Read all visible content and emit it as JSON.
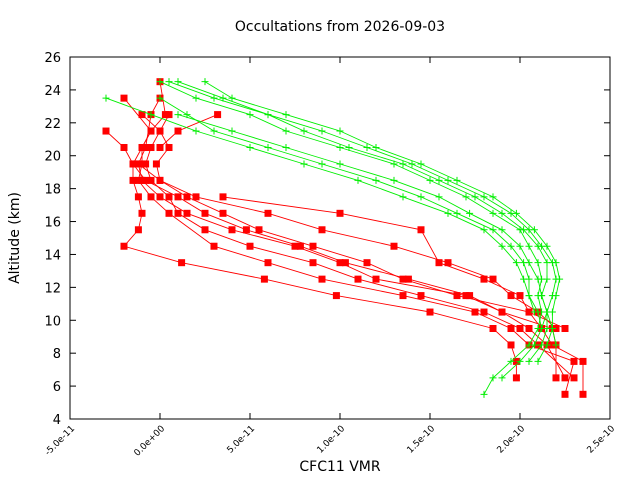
{
  "chart_data": {
    "type": "line",
    "title": "Occultations from 2026-09-03",
    "xlabel": "CFC11 VMR",
    "ylabel": "Altitude (km)",
    "xlim": [
      -5e-11,
      2.5e-10
    ],
    "ylim": [
      4,
      26
    ],
    "x_ticks": [
      -5e-11,
      0,
      5e-11,
      1e-10,
      1.5e-10,
      2e-10,
      2.5e-10
    ],
    "x_tick_labels": [
      "-5.0e-11",
      "0.0e+00",
      "5.0e-11",
      "1.0e-10",
      "1.5e-10",
      "2.0e-10",
      "2.5e-10"
    ],
    "y_ticks": [
      4,
      6,
      8,
      10,
      12,
      14,
      16,
      18,
      20,
      22,
      24,
      26
    ],
    "y_tick_labels": [
      "4",
      "6",
      "8",
      "10",
      "12",
      "14",
      "16",
      "18",
      "20",
      "22",
      "24",
      "26"
    ],
    "grid": false,
    "legend": "none",
    "colors": {
      "red": "#ff0000",
      "green": "#00ee00"
    },
    "series": [
      {
        "color": "red",
        "marker": "square",
        "points": [
          [
            -2e-11,
            23.5
          ],
          [
            -5e-12,
            21.5
          ],
          [
            -1e-11,
            20.5
          ],
          [
            -1e-11,
            19.5
          ],
          [
            -1.2e-11,
            18.5
          ],
          [
            -5e-12,
            17.5
          ],
          [
            5e-12,
            16.5
          ],
          [
            3e-11,
            14.5
          ],
          [
            6e-11,
            13.5
          ],
          [
            9e-11,
            12.5
          ],
          [
            1.35e-10,
            11.5
          ],
          [
            1.75e-10,
            10.5
          ],
          [
            1.95e-10,
            9.5
          ],
          [
            2.05e-10,
            8.5
          ],
          [
            2.3e-10,
            7.5
          ],
          [
            2.25e-10,
            5.5
          ]
        ]
      },
      {
        "color": "red",
        "marker": "square",
        "points": [
          [
            0,
            23.5
          ],
          [
            -5e-12,
            22.5
          ],
          [
            -8e-12,
            20.5
          ],
          [
            -1.2e-11,
            19.5
          ],
          [
            -1e-11,
            18.5
          ],
          [
            0,
            17.5
          ],
          [
            1.5e-11,
            16.5
          ],
          [
            4e-11,
            15.5
          ],
          [
            7.5e-11,
            14.5
          ],
          [
            1e-10,
            13.5
          ],
          [
            1.2e-10,
            12.5
          ],
          [
            1.7e-10,
            11.5
          ],
          [
            1.9e-10,
            10.5
          ],
          [
            2.05e-10,
            9.5
          ],
          [
            2.15e-10,
            8.5
          ],
          [
            2.25e-10,
            6.5
          ]
        ]
      },
      {
        "color": "red",
        "marker": "square",
        "points": [
          [
            5e-12,
            22.5
          ],
          [
            0,
            21.5
          ],
          [
            -5e-12,
            20.5
          ],
          [
            -8e-12,
            19.5
          ],
          [
            -5e-12,
            18.5
          ],
          [
            5e-12,
            17.5
          ],
          [
            1e-11,
            16.5
          ],
          [
            2.5e-11,
            15.5
          ],
          [
            5e-11,
            14.5
          ],
          [
            8.5e-11,
            13.5
          ],
          [
            1.1e-10,
            12.5
          ],
          [
            1.45e-10,
            11.5
          ],
          [
            1.8e-10,
            10.5
          ],
          [
            2e-10,
            9.5
          ],
          [
            2.1e-10,
            8.5
          ],
          [
            2.3e-10,
            6.5
          ]
        ]
      },
      {
        "color": "red",
        "marker": "square",
        "points": [
          [
            -3e-11,
            21.5
          ],
          [
            -2e-11,
            20.5
          ],
          [
            -1.5e-11,
            19.5
          ],
          [
            -1.5e-11,
            18.5
          ],
          [
            -1.2e-11,
            17.5
          ],
          [
            -1e-11,
            16.5
          ],
          [
            -1.2e-11,
            15.5
          ],
          [
            -2e-11,
            14.5
          ],
          [
            1.2e-11,
            13.5
          ],
          [
            5.8e-11,
            12.5
          ],
          [
            9.8e-11,
            11.5
          ],
          [
            1.5e-10,
            10.5
          ],
          [
            1.85e-10,
            9.5
          ],
          [
            1.95e-10,
            8.5
          ],
          [
            1.98e-10,
            7.5
          ],
          [
            1.98e-10,
            6.5
          ]
        ]
      },
      {
        "color": "red",
        "marker": "square",
        "points": [
          [
            -1e-11,
            22.5
          ],
          [
            0,
            21.5
          ],
          [
            5e-12,
            20.5
          ],
          [
            -2e-12,
            19.5
          ],
          [
            0,
            18.5
          ],
          [
            1.5e-11,
            17.5
          ],
          [
            3.5e-11,
            16.5
          ],
          [
            5.5e-11,
            15.5
          ],
          [
            8.5e-11,
            14.5
          ],
          [
            1.15e-10,
            13.5
          ],
          [
            1.35e-10,
            12.5
          ],
          [
            1.65e-10,
            11.5
          ],
          [
            2.05e-10,
            10.5
          ],
          [
            2.12e-10,
            9.5
          ],
          [
            2.18e-10,
            8.5
          ],
          [
            2.35e-10,
            7.5
          ],
          [
            2.35e-10,
            5.5
          ]
        ]
      },
      {
        "color": "red",
        "marker": "square",
        "points": [
          [
            0,
            24.5
          ],
          [
            3e-12,
            22.5
          ],
          [
            -5e-12,
            21.5
          ],
          [
            -1e-11,
            20.5
          ],
          [
            -1.5e-11,
            19.5
          ],
          [
            -8e-12,
            18.5
          ],
          [
            1e-11,
            17.5
          ],
          [
            2.5e-11,
            16.5
          ],
          [
            4.8e-11,
            15.5
          ],
          [
            7.8e-11,
            14.5
          ],
          [
            1.03e-10,
            13.5
          ],
          [
            1.38e-10,
            12.5
          ],
          [
            1.72e-10,
            11.5
          ],
          [
            1.9e-10,
            10.5
          ],
          [
            2.18e-10,
            9.5
          ],
          [
            2.2e-10,
            8.5
          ],
          [
            2.2e-10,
            6.5
          ]
        ]
      },
      {
        "color": "red",
        "marker": "square",
        "points": [
          [
            3.5e-11,
            17.5
          ],
          [
            1e-10,
            16.5
          ],
          [
            1.45e-10,
            15.5
          ],
          [
            1.55e-10,
            13.5
          ],
          [
            1.8e-10,
            12.5
          ],
          [
            2e-10,
            11.5
          ],
          [
            2.05e-10,
            10.5
          ],
          [
            2.25e-10,
            9.5
          ]
        ]
      },
      {
        "color": "red",
        "marker": "square",
        "points": [
          [
            -1.2e-11,
            19.5
          ],
          [
            0,
            18.5
          ],
          [
            2e-11,
            17.5
          ],
          [
            6e-11,
            16.5
          ],
          [
            9e-11,
            15.5
          ],
          [
            1.3e-10,
            14.5
          ],
          [
            1.6e-10,
            13.5
          ],
          [
            1.85e-10,
            12.5
          ],
          [
            1.95e-10,
            11.5
          ],
          [
            2.1e-10,
            10.5
          ],
          [
            2.2e-10,
            9.5
          ]
        ]
      },
      {
        "color": "red",
        "marker": "square",
        "points": [
          [
            3.2e-11,
            22.5
          ],
          [
            1e-11,
            21.5
          ],
          [
            0,
            20.5
          ]
        ]
      },
      {
        "color": "green",
        "marker": "plus",
        "points": [
          [
            0,
            24.5
          ],
          [
            2e-11,
            23.5
          ],
          [
            5e-11,
            22.5
          ],
          [
            7e-11,
            21.5
          ],
          [
            1e-10,
            20.5
          ],
          [
            1.3e-10,
            19.5
          ],
          [
            1.5e-10,
            18.5
          ],
          [
            1.7e-10,
            17.5
          ],
          [
            1.85e-10,
            16.5
          ],
          [
            2e-10,
            15.5
          ],
          [
            2.05e-10,
            14.5
          ],
          [
            2.1e-10,
            13.5
          ],
          [
            2.12e-10,
            12.5
          ],
          [
            2.1e-10,
            11.5
          ],
          [
            2.12e-10,
            10.5
          ],
          [
            2.1e-10,
            9.5
          ],
          [
            2.05e-10,
            8.5
          ],
          [
            1.95e-10,
            7.5
          ],
          [
            1.85e-10,
            6.5
          ],
          [
            1.8e-10,
            5.5
          ]
        ]
      },
      {
        "color": "green",
        "marker": "plus",
        "points": [
          [
            5e-12,
            24.5
          ],
          [
            3e-11,
            23.5
          ],
          [
            6e-11,
            22.5
          ],
          [
            8e-11,
            21.5
          ],
          [
            1.05e-10,
            20.5
          ],
          [
            1.35e-10,
            19.5
          ],
          [
            1.55e-10,
            18.5
          ],
          [
            1.75e-10,
            17.5
          ],
          [
            1.9e-10,
            16.5
          ],
          [
            2.02e-10,
            15.5
          ],
          [
            2.1e-10,
            14.5
          ],
          [
            2.15e-10,
            13.5
          ],
          [
            2.15e-10,
            12.5
          ],
          [
            2.12e-10,
            11.5
          ],
          [
            2.15e-10,
            10.5
          ],
          [
            2.12e-10,
            9.5
          ],
          [
            2.08e-10,
            8.5
          ],
          [
            2e-10,
            7.5
          ],
          [
            1.9e-10,
            6.5
          ]
        ]
      },
      {
        "color": "green",
        "marker": "plus",
        "points": [
          [
            1e-11,
            24.5
          ],
          [
            3.5e-11,
            23.5
          ],
          [
            6e-11,
            22.5
          ],
          [
            9e-11,
            21.5
          ],
          [
            1.15e-10,
            20.5
          ],
          [
            1.4e-10,
            19.5
          ],
          [
            1.6e-10,
            18.5
          ],
          [
            1.8e-10,
            17.5
          ],
          [
            1.95e-10,
            16.5
          ],
          [
            2.05e-10,
            15.5
          ],
          [
            2.12e-10,
            14.5
          ],
          [
            2.18e-10,
            13.5
          ],
          [
            2.2e-10,
            12.5
          ],
          [
            2.18e-10,
            11.5
          ],
          [
            2.15e-10,
            10.5
          ],
          [
            2.15e-10,
            9.5
          ],
          [
            2.12e-10,
            8.5
          ],
          [
            2.05e-10,
            7.5
          ]
        ]
      },
      {
        "color": "green",
        "marker": "plus",
        "points": [
          [
            2.5e-11,
            24.5
          ],
          [
            4e-11,
            23.5
          ],
          [
            7e-11,
            22.5
          ],
          [
            1e-10,
            21.5
          ],
          [
            1.2e-10,
            20.5
          ],
          [
            1.45e-10,
            19.5
          ],
          [
            1.65e-10,
            18.5
          ],
          [
            1.85e-10,
            17.5
          ],
          [
            1.98e-10,
            16.5
          ],
          [
            2.08e-10,
            15.5
          ],
          [
            2.15e-10,
            14.5
          ],
          [
            2.2e-10,
            13.5
          ],
          [
            2.22e-10,
            12.5
          ],
          [
            2.2e-10,
            11.5
          ],
          [
            2.18e-10,
            10.5
          ],
          [
            2.18e-10,
            9.5
          ],
          [
            2.15e-10,
            8.5
          ],
          [
            2.1e-10,
            7.5
          ]
        ]
      },
      {
        "color": "green",
        "marker": "plus",
        "points": [
          [
            0,
            23.5
          ],
          [
            1.5e-11,
            22.5
          ],
          [
            3e-11,
            21.5
          ],
          [
            6e-11,
            20.5
          ],
          [
            9e-11,
            19.5
          ],
          [
            1.2e-10,
            18.5
          ],
          [
            1.45e-10,
            17.5
          ],
          [
            1.65e-10,
            16.5
          ],
          [
            1.85e-10,
            15.5
          ],
          [
            1.95e-10,
            14.5
          ],
          [
            2.02e-10,
            13.5
          ],
          [
            2.05e-10,
            12.5
          ],
          [
            2.05e-10,
            11.5
          ],
          [
            2.1e-10,
            10.5
          ],
          [
            2.12e-10,
            9.5
          ]
        ]
      },
      {
        "color": "green",
        "marker": "plus",
        "points": [
          [
            -3e-11,
            23.5
          ],
          [
            -5e-12,
            22.5
          ],
          [
            2e-11,
            21.5
          ],
          [
            5e-11,
            20.5
          ],
          [
            8e-11,
            19.5
          ],
          [
            1.1e-10,
            18.5
          ],
          [
            1.35e-10,
            17.5
          ],
          [
            1.6e-10,
            16.5
          ],
          [
            1.8e-10,
            15.5
          ],
          [
            1.9e-10,
            14.5
          ],
          [
            1.98e-10,
            13.5
          ],
          [
            2.02e-10,
            12.5
          ],
          [
            2.05e-10,
            11.5
          ],
          [
            2.08e-10,
            10.5
          ]
        ]
      },
      {
        "color": "green",
        "marker": "plus",
        "points": [
          [
            1e-11,
            22.5
          ],
          [
            4e-11,
            21.5
          ],
          [
            7e-11,
            20.5
          ],
          [
            1e-10,
            19.5
          ],
          [
            1.3e-10,
            18.5
          ],
          [
            1.55e-10,
            17.5
          ],
          [
            1.72e-10,
            16.5
          ],
          [
            1.9e-10,
            15.5
          ],
          [
            2e-10,
            14.5
          ],
          [
            2.05e-10,
            13.5
          ],
          [
            2.1e-10,
            12.5
          ],
          [
            2.12e-10,
            11.5
          ],
          [
            2.15e-10,
            10.5
          ],
          [
            2.18e-10,
            9.5
          ],
          [
            2.2e-10,
            8.5
          ]
        ]
      }
    ]
  }
}
